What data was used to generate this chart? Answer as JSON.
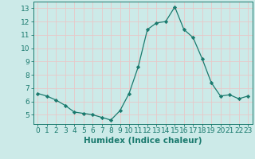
{
  "x": [
    0,
    1,
    2,
    3,
    4,
    5,
    6,
    7,
    8,
    9,
    10,
    11,
    12,
    13,
    14,
    15,
    16,
    17,
    18,
    19,
    20,
    21,
    22,
    23
  ],
  "y": [
    6.6,
    6.4,
    6.1,
    5.7,
    5.2,
    5.1,
    5.0,
    4.8,
    4.6,
    5.3,
    6.6,
    8.6,
    11.4,
    11.9,
    12.0,
    13.1,
    11.4,
    10.8,
    9.2,
    7.4,
    6.4,
    6.5,
    6.2,
    6.4
  ],
  "line_color": "#1a7a6e",
  "marker": "D",
  "marker_size": 2.2,
  "bg_color": "#cceae8",
  "grid_color": "#e8c8c8",
  "xlabel": "Humidex (Indice chaleur)",
  "xlim": [
    -0.5,
    23.5
  ],
  "ylim": [
    4.3,
    13.5
  ],
  "yticks": [
    5,
    6,
    7,
    8,
    9,
    10,
    11,
    12,
    13
  ],
  "xticks": [
    0,
    1,
    2,
    3,
    4,
    5,
    6,
    7,
    8,
    9,
    10,
    11,
    12,
    13,
    14,
    15,
    16,
    17,
    18,
    19,
    20,
    21,
    22,
    23
  ],
  "xlabel_fontsize": 7.5,
  "tick_fontsize": 6.5
}
